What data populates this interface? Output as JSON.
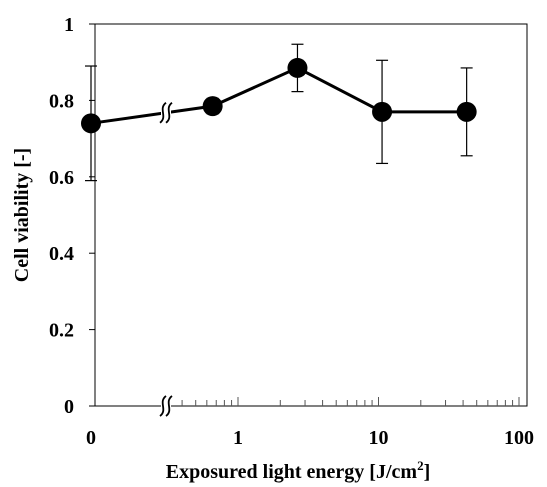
{
  "chart_data": {
    "type": "line",
    "title": "",
    "xlabel": "Exposured light energy [J/cm",
    "xlabel_superscript": "2",
    "xlabel_suffix": "]",
    "ylabel": "Cell viability [-]",
    "x_scale": "log",
    "x_axis_break": true,
    "xlim": [
      0.1,
      100
    ],
    "ylim": [
      0,
      1
    ],
    "x_tick_labels": [
      "0",
      "1",
      "10",
      "100"
    ],
    "y_tick_labels": [
      "0",
      "0.2",
      "0.4",
      "0.6",
      "0.8",
      "1"
    ],
    "y_ticks": [
      0,
      0.2,
      0.4,
      0.6,
      0.8,
      1
    ],
    "grid": false,
    "series": [
      {
        "x": [
          0,
          0.66,
          2.65,
          10.6,
          42.4
        ],
        "y": [
          0.74,
          0.785,
          0.885,
          0.77,
          0.77
        ],
        "error": [
          0.15,
          0.02,
          0.062,
          0.135,
          0.115
        ],
        "color": "#000000",
        "marker": "circle"
      }
    ]
  }
}
